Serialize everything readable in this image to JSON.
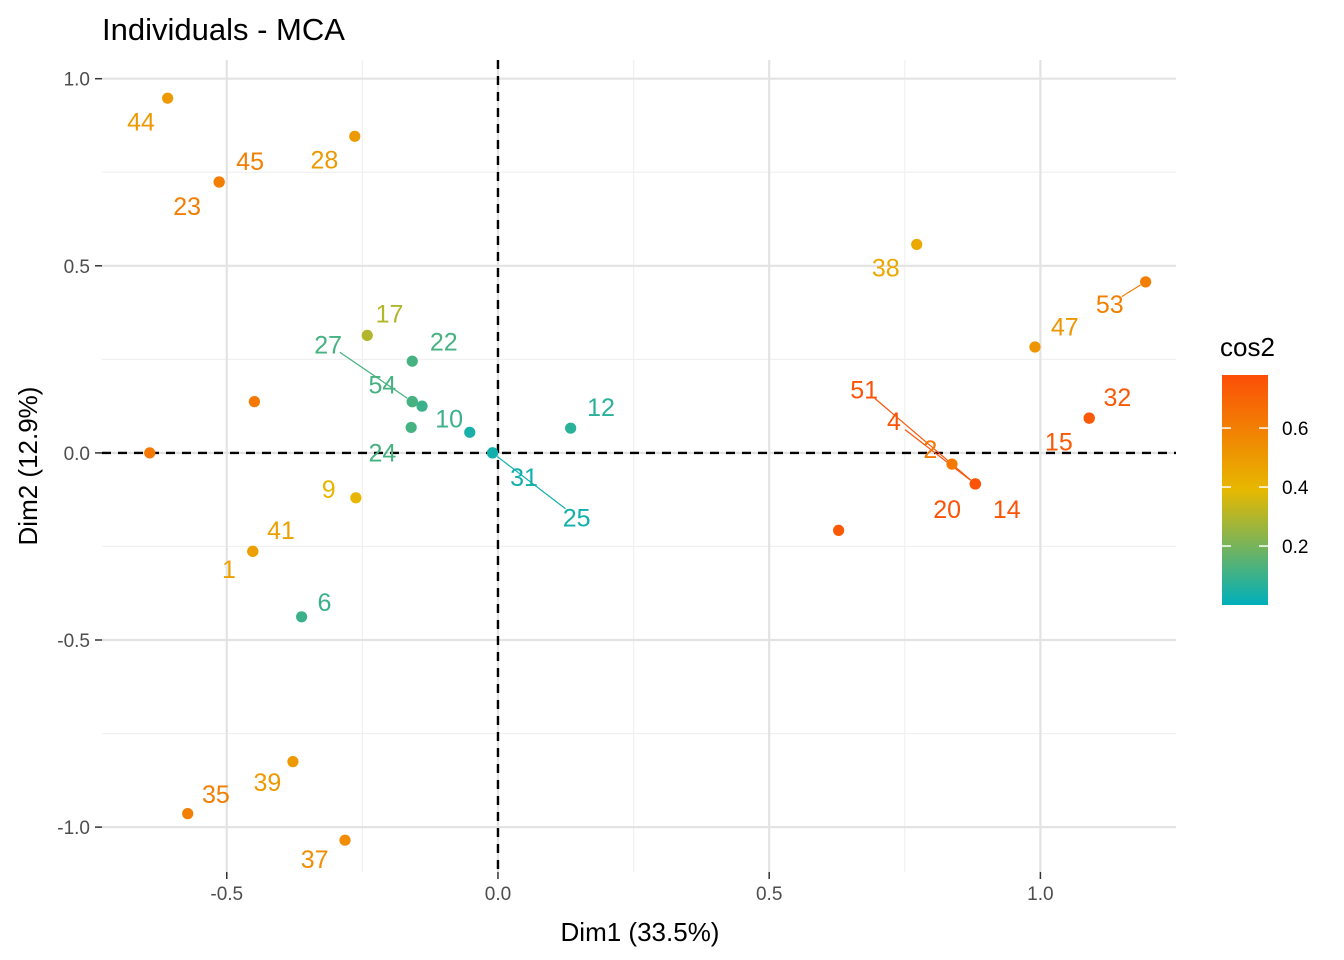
{
  "chart_data": {
    "type": "scatter",
    "title": "Individuals - MCA",
    "xlabel": "Dim1 (33.5%)",
    "ylabel": "Dim2 (12.9%)",
    "xlim": [
      -0.73,
      1.25
    ],
    "ylim": [
      -1.12,
      1.05
    ],
    "x_ticks": [
      -0.5,
      0.0,
      0.5,
      1.0
    ],
    "x_tick_labels": [
      "-0.5",
      "0.0",
      "0.5",
      "1.0"
    ],
    "y_ticks": [
      -1.0,
      -0.5,
      0.0,
      0.5,
      1.0
    ],
    "y_tick_labels": [
      "-1.0",
      "-0.5",
      "0.0",
      "0.5",
      "1.0"
    ],
    "grid": true,
    "reference_lines": {
      "x": 0,
      "y": 0,
      "style": "dashed"
    },
    "color_variable": "cos2",
    "legend": {
      "title": "cos2",
      "position": "right",
      "ticks": [
        0.2,
        0.4,
        0.6
      ],
      "tick_labels": [
        "0.2",
        "0.4",
        "0.6"
      ],
      "range": [
        0.0,
        0.78
      ],
      "gradient": [
        "#00AFBB",
        "#E7B800",
        "#FC4E07"
      ]
    },
    "points": [
      {
        "label": "44",
        "x": -0.609,
        "y": 0.948,
        "cos2": 0.5,
        "lx": -0.658,
        "ly": 0.885
      },
      {
        "label": "45",
        "x": -0.514,
        "y": 0.724,
        "cos2": 0.6,
        "lx": -0.457,
        "ly": 0.78
      },
      {
        "label": "23",
        "x": -0.514,
        "y": 0.724,
        "cos2": 0.6,
        "lx": -0.573,
        "ly": 0.66
      },
      {
        "label": "28",
        "x": -0.264,
        "y": 0.846,
        "cos2": 0.5,
        "lx": -0.32,
        "ly": 0.784
      },
      {
        "label": "17",
        "x": -0.241,
        "y": 0.314,
        "cos2": 0.3,
        "lx": -0.2,
        "ly": 0.373
      },
      {
        "label": "22",
        "x": -0.158,
        "y": 0.245,
        "cos2": 0.12,
        "lx": -0.1,
        "ly": 0.298
      },
      {
        "label": "27",
        "x": -0.158,
        "y": 0.137,
        "cos2": 0.12,
        "lx": -0.313,
        "ly": 0.29
      },
      {
        "label": "54",
        "x": -0.158,
        "y": 0.137,
        "cos2": 0.12,
        "lx": -0.213,
        "ly": 0.183
      },
      {
        "label": "10",
        "x": -0.14,
        "y": 0.125,
        "cos2": 0.1,
        "lx": -0.09,
        "ly": 0.092
      },
      {
        "label": "24",
        "x": -0.16,
        "y": 0.068,
        "cos2": 0.12,
        "lx": -0.213,
        "ly": 0.001
      },
      {
        "label": "",
        "x": -0.052,
        "y": 0.055,
        "cos2": 0.04
      },
      {
        "label": "31",
        "x": -0.01,
        "y": 0.0,
        "cos2": 0.03,
        "lx": 0.048,
        "ly": -0.065
      },
      {
        "label": "25",
        "x": -0.01,
        "y": 0.0,
        "cos2": 0.03,
        "lx": 0.145,
        "ly": -0.172
      },
      {
        "label": "12",
        "x": 0.134,
        "y": 0.066,
        "cos2": 0.07,
        "lx": 0.19,
        "ly": 0.123
      },
      {
        "label": "",
        "x": -0.642,
        "y": 0.0,
        "cos2": 0.62
      },
      {
        "label": "",
        "x": -0.449,
        "y": 0.137,
        "cos2": 0.62
      },
      {
        "label": "9",
        "x": -0.262,
        "y": -0.12,
        "cos2": 0.4,
        "lx": -0.312,
        "ly": -0.097
      },
      {
        "label": "41",
        "x": -0.452,
        "y": -0.263,
        "cos2": 0.48,
        "lx": -0.4,
        "ly": -0.206
      },
      {
        "label": "1",
        "x": -0.452,
        "y": -0.263,
        "cos2": 0.48,
        "lx": -0.496,
        "ly": -0.31
      },
      {
        "label": "6",
        "x": -0.362,
        "y": -0.438,
        "cos2": 0.1,
        "lx": -0.32,
        "ly": -0.398
      },
      {
        "label": "39",
        "x": -0.378,
        "y": -0.825,
        "cos2": 0.5,
        "lx": -0.425,
        "ly": -0.88
      },
      {
        "label": "35",
        "x": -0.572,
        "y": -0.964,
        "cos2": 0.6,
        "lx": -0.52,
        "ly": -0.912
      },
      {
        "label": "37",
        "x": -0.282,
        "y": -1.035,
        "cos2": 0.55,
        "lx": -0.338,
        "ly": -1.085
      },
      {
        "label": "38",
        "x": 0.772,
        "y": 0.557,
        "cos2": 0.45,
        "lx": 0.715,
        "ly": 0.495
      },
      {
        "label": "53",
        "x": 1.194,
        "y": 0.457,
        "cos2": 0.6,
        "lx": 1.128,
        "ly": 0.398
      },
      {
        "label": "47",
        "x": 0.99,
        "y": 0.283,
        "cos2": 0.52,
        "lx": 1.045,
        "ly": 0.338
      },
      {
        "label": "32",
        "x": 1.09,
        "y": 0.093,
        "cos2": 0.74,
        "lx": 1.142,
        "ly": 0.15
      },
      {
        "label": "15",
        "x": 1.09,
        "y": 0.093,
        "cos2": 0.74,
        "lx": 1.034,
        "ly": 0.03
      },
      {
        "label": "51",
        "x": 0.88,
        "y": -0.083,
        "cos2": 0.76,
        "lx": 0.675,
        "ly": 0.17
      },
      {
        "label": "4",
        "x": 0.88,
        "y": -0.083,
        "cos2": 0.76,
        "lx": 0.73,
        "ly": 0.085
      },
      {
        "label": "2",
        "x": 0.837,
        "y": -0.03,
        "cos2": 0.62,
        "lx": 0.797,
        "ly": 0.01
      },
      {
        "label": "20",
        "x": 0.88,
        "y": -0.083,
        "cos2": 0.76,
        "lx": 0.828,
        "ly": -0.15
      },
      {
        "label": "14",
        "x": 0.88,
        "y": -0.083,
        "cos2": 0.76,
        "lx": 0.938,
        "ly": -0.15
      },
      {
        "label": "",
        "x": 0.628,
        "y": -0.207,
        "cos2": 0.74
      }
    ]
  }
}
